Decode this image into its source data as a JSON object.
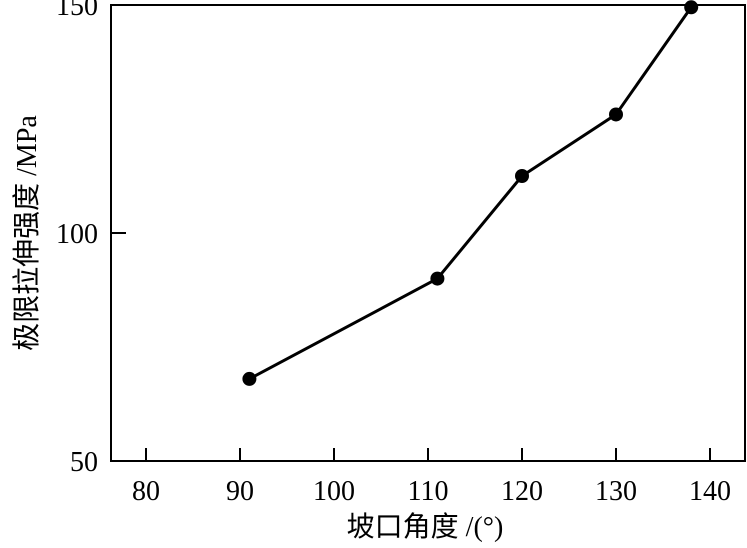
{
  "chart_data": {
    "type": "line",
    "xlabel": "坡口角度 /(°)",
    "ylabel": "极限拉伸强度 /MPa",
    "xlim": [
      76,
      145
    ],
    "ylim": [
      50,
      150
    ],
    "xticks": [
      80,
      90,
      100,
      110,
      120,
      130,
      140
    ],
    "yticks": [
      50,
      100,
      150
    ],
    "grid": false,
    "x": [
      91,
      111,
      120,
      130,
      138
    ],
    "y": [
      68,
      90,
      112.5,
      126,
      149.5
    ],
    "color": "#000000",
    "marker": "filled-circle"
  }
}
